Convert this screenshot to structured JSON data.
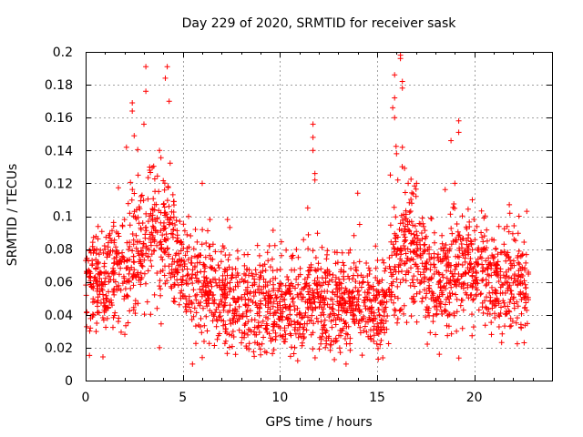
{
  "chart_data": {
    "type": "scatter",
    "title": "Day 229 of 2020, SRMTID for receiver sask",
    "xlabel": "GPS time / hours",
    "ylabel": "SRMTID / TECUs",
    "xlim": [
      0,
      24
    ],
    "ylim": [
      0,
      0.2
    ],
    "xticks": [
      0,
      5,
      10,
      15,
      20
    ],
    "yticks": [
      0,
      0.02,
      0.04,
      0.06,
      0.08,
      0.1,
      0.12,
      0.14,
      0.16,
      0.18,
      0.2
    ],
    "grid": true,
    "marker": "+",
    "series_color": "#ff0000",
    "envelope": [
      [
        0.0,
        0.06
      ],
      [
        1.0,
        0.062
      ],
      [
        2.0,
        0.07
      ],
      [
        3.0,
        0.088
      ],
      [
        4.0,
        0.09
      ],
      [
        4.5,
        0.08
      ],
      [
        5.0,
        0.07
      ],
      [
        6.0,
        0.055
      ],
      [
        7.0,
        0.05
      ],
      [
        8.0,
        0.048
      ],
      [
        9.0,
        0.046
      ],
      [
        10.0,
        0.045
      ],
      [
        11.0,
        0.048
      ],
      [
        12.0,
        0.05
      ],
      [
        13.0,
        0.048
      ],
      [
        14.0,
        0.05
      ],
      [
        15.0,
        0.045
      ],
      [
        15.5,
        0.05
      ],
      [
        16.0,
        0.075
      ],
      [
        16.5,
        0.085
      ],
      [
        17.0,
        0.075
      ],
      [
        17.5,
        0.065
      ],
      [
        18.0,
        0.06
      ],
      [
        18.5,
        0.062
      ],
      [
        19.0,
        0.068
      ],
      [
        20.0,
        0.066
      ],
      [
        21.0,
        0.062
      ],
      [
        22.0,
        0.06
      ],
      [
        22.8,
        0.058
      ]
    ],
    "spikes": [
      [
        3.1,
        0.191
      ],
      [
        4.2,
        0.191
      ],
      [
        4.1,
        0.184
      ],
      [
        3.1,
        0.176
      ],
      [
        4.3,
        0.17
      ],
      [
        2.4,
        0.169
      ],
      [
        2.4,
        0.164
      ],
      [
        3.0,
        0.156
      ],
      [
        2.5,
        0.149
      ],
      [
        3.8,
        0.14
      ],
      [
        2.1,
        0.142
      ],
      [
        3.3,
        0.128
      ],
      [
        2.7,
        0.125
      ],
      [
        6.0,
        0.12
      ],
      [
        6.4,
        0.098
      ],
      [
        7.3,
        0.098
      ],
      [
        11.7,
        0.156
      ],
      [
        11.7,
        0.148
      ],
      [
        11.7,
        0.14
      ],
      [
        11.8,
        0.126
      ],
      [
        11.8,
        0.122
      ],
      [
        14.0,
        0.114
      ],
      [
        14.1,
        0.095
      ],
      [
        16.2,
        0.198
      ],
      [
        16.2,
        0.196
      ],
      [
        15.9,
        0.186
      ],
      [
        16.3,
        0.182
      ],
      [
        16.3,
        0.178
      ],
      [
        15.9,
        0.172
      ],
      [
        15.8,
        0.166
      ],
      [
        15.9,
        0.16
      ],
      [
        16.3,
        0.142
      ],
      [
        16.0,
        0.138
      ],
      [
        16.6,
        0.12
      ],
      [
        17.0,
        0.112
      ],
      [
        19.2,
        0.158
      ],
      [
        19.2,
        0.151
      ],
      [
        18.8,
        0.146
      ],
      [
        19.0,
        0.12
      ],
      [
        19.9,
        0.11
      ],
      [
        21.8,
        0.107
      ],
      [
        22.7,
        0.103
      ],
      [
        22.3,
        0.1
      ],
      [
        3.8,
        0.02
      ],
      [
        5.5,
        0.01
      ],
      [
        6.0,
        0.014
      ],
      [
        13.4,
        0.01
      ],
      [
        18.2,
        0.016
      ]
    ],
    "point_count": 2400,
    "random_seed": 229
  }
}
